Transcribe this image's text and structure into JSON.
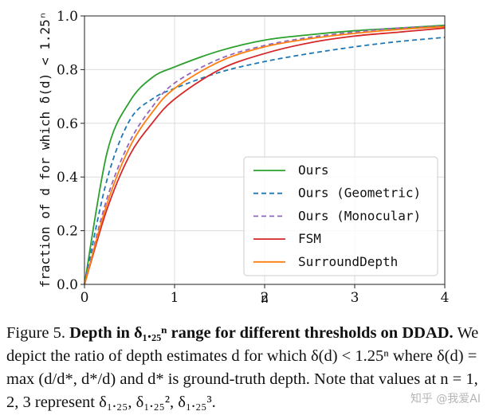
{
  "chart_data": {
    "type": "line",
    "ylabel": "fraction of d for which δ(d) < 1.25ⁿ",
    "xlabel": "n",
    "xlim": [
      0,
      4
    ],
    "ylim": [
      0,
      1
    ],
    "xticks": [
      "0",
      "1",
      "2",
      "3",
      "4"
    ],
    "yticks": [
      "0.0",
      "0.2",
      "0.4",
      "0.6",
      "0.8",
      "1.0"
    ],
    "x": [
      0,
      0.25,
      0.5,
      0.75,
      1.0,
      1.5,
      2.0,
      2.5,
      3.0,
      3.5,
      4.0
    ],
    "legend_position": "center-right",
    "series": [
      {
        "name": "Ours",
        "style": "solid",
        "color": "#2ca02c",
        "values": [
          0.0,
          0.49,
          0.68,
          0.77,
          0.81,
          0.87,
          0.91,
          0.93,
          0.945,
          0.955,
          0.965
        ]
      },
      {
        "name": "Ours (Geometric)",
        "style": "dashed",
        "color": "#1f77b4",
        "values": [
          0.0,
          0.39,
          0.61,
          0.69,
          0.73,
          0.79,
          0.83,
          0.86,
          0.885,
          0.905,
          0.92
        ]
      },
      {
        "name": "Ours (Monocular)",
        "style": "dashed",
        "color": "#9467bd",
        "values": [
          0.0,
          0.32,
          0.53,
          0.66,
          0.75,
          0.84,
          0.89,
          0.92,
          0.94,
          0.955,
          0.962
        ]
      },
      {
        "name": "FSM",
        "style": "solid",
        "color": "#d62728",
        "values": [
          0.0,
          0.28,
          0.48,
          0.6,
          0.69,
          0.8,
          0.86,
          0.9,
          0.925,
          0.94,
          0.955
        ]
      },
      {
        "name": "SurroundDepth",
        "style": "solid",
        "color": "#ff7f0e",
        "values": [
          0.0,
          0.3,
          0.51,
          0.64,
          0.73,
          0.83,
          0.885,
          0.915,
          0.935,
          0.95,
          0.96
        ]
      }
    ]
  },
  "caption": {
    "figure_label": "Figure 5.",
    "bold_title": "Depth in δ₁.₂₅ⁿ range for different thresholds on DDAD.",
    "body": "We depict the ratio of depth estimates d for which δ(d) < 1.25ⁿ where δ(d) = max (d/d*, d*/d) and d* is ground-truth depth. Note that values at n = 1, 2, 3 represent δ₁.₂₅, δ₁.₂₅², δ₁.₂₅³."
  },
  "watermark": "知乎 @我爱AI"
}
